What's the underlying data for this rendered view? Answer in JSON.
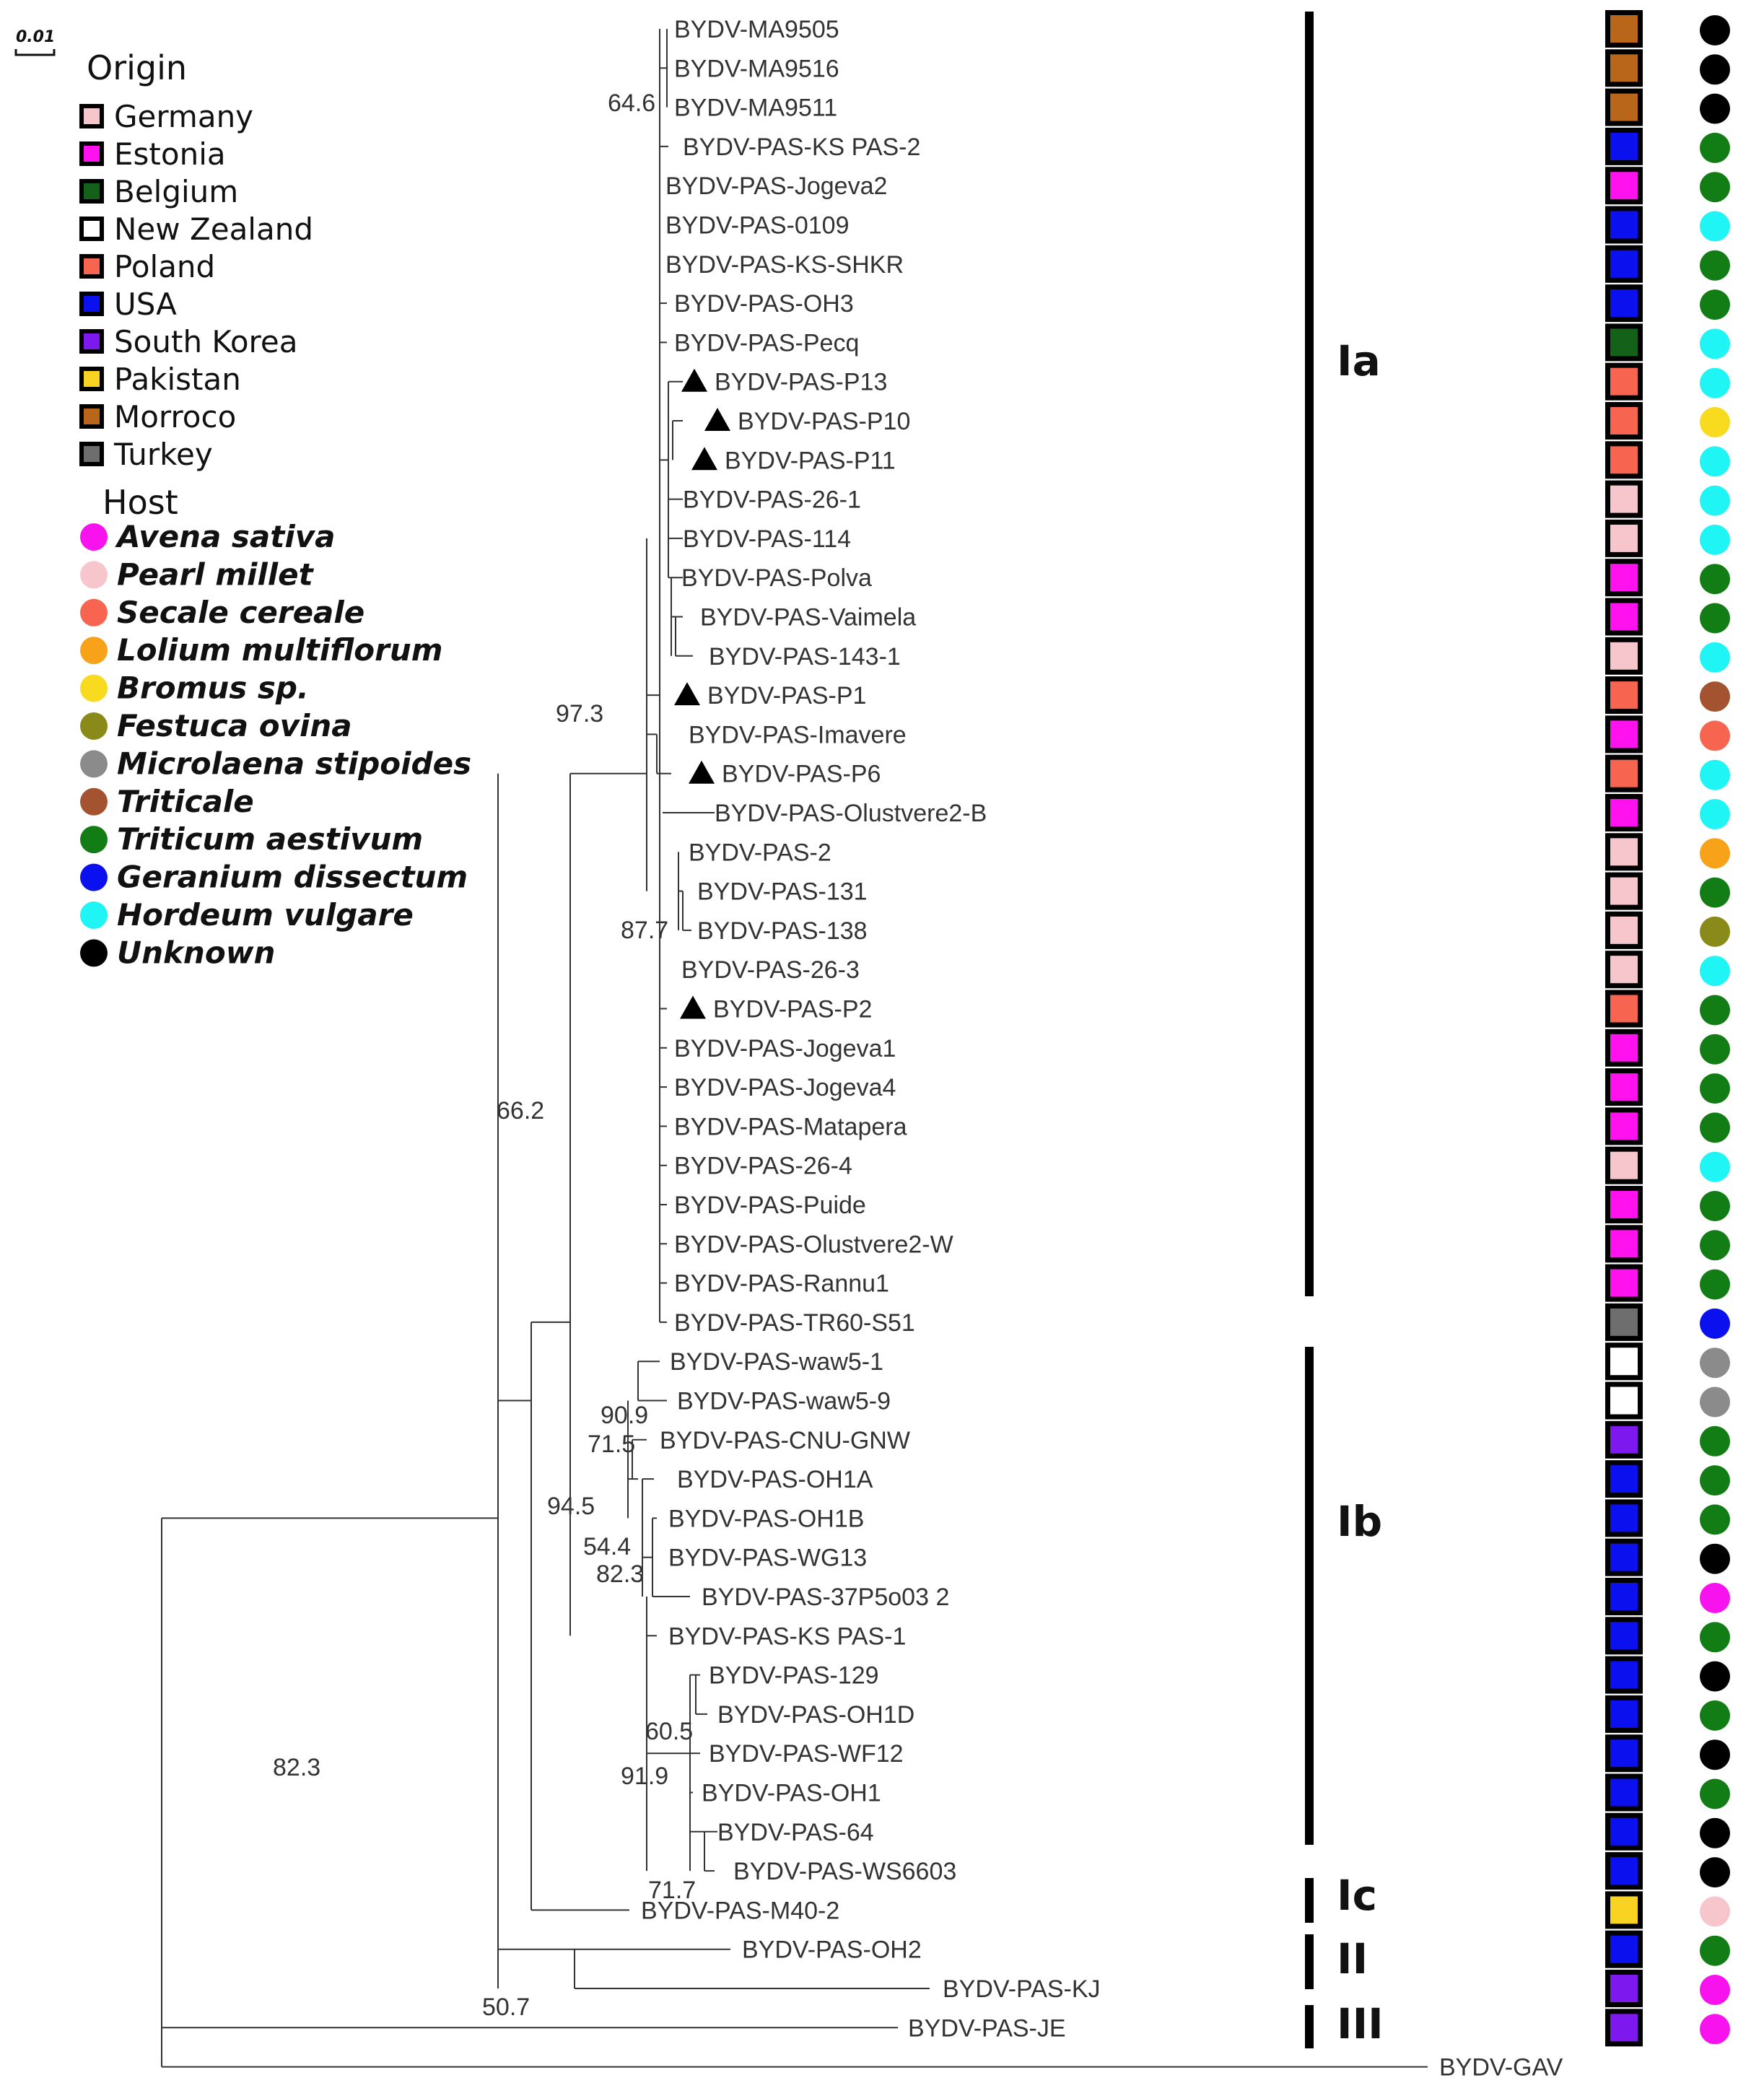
{
  "scale": {
    "label": "0.01"
  },
  "origin_legend": {
    "title": "Origin",
    "items": [
      {
        "label": "Germany",
        "color": "#f6c6cc"
      },
      {
        "label": "Estonia",
        "color": "#ff12ee"
      },
      {
        "label": "Belgium",
        "color": "#14621a"
      },
      {
        "label": "New Zealand",
        "color": "#ffffff"
      },
      {
        "label": "Poland",
        "color": "#f7644f"
      },
      {
        "label": "USA",
        "color": "#0b11ee"
      },
      {
        "label": "South Korea",
        "color": "#7d18ee"
      },
      {
        "label": "Pakistan",
        "color": "#f8d321"
      },
      {
        "label": "Morroco",
        "color": "#b9661b"
      },
      {
        "label": "Turkey",
        "color": "#6e6e6e"
      }
    ]
  },
  "host_legend": {
    "title": "Host",
    "items": [
      {
        "label": "Avena sativa",
        "color": "#f812ee"
      },
      {
        "label": "Pearl millet",
        "color": "#f7c6cc"
      },
      {
        "label": "Secale cereale",
        "color": "#f7644f"
      },
      {
        "label": "Lolium multiflorum",
        "color": "#f8a21a"
      },
      {
        "label": "Bromus sp.",
        "color": "#f8da1e"
      },
      {
        "label": "Festuca ovina",
        "color": "#8a8a1a"
      },
      {
        "label": "Microlaena stipoides",
        "color": "#8b8b8b"
      },
      {
        "label": "Triticale",
        "color": "#a3532f"
      },
      {
        "label": "Triticum aestivum",
        "color": "#137d15"
      },
      {
        "label": "Geranium dissectum",
        "color": "#0b11ee"
      },
      {
        "label": "Hordeum vulgare",
        "color": "#1ff5f5"
      },
      {
        "label": "Unknown",
        "color": "#000000"
      }
    ]
  },
  "taxa": [
    {
      "name": "BYDV-MA9505",
      "origin": "Morroco",
      "host": "Unknown",
      "marker": false
    },
    {
      "name": "BYDV-MA9516",
      "origin": "Morroco",
      "host": "Unknown",
      "marker": false
    },
    {
      "name": "BYDV-MA9511",
      "origin": "Morroco",
      "host": "Unknown",
      "marker": false
    },
    {
      "name": "BYDV-PAS-KS PAS-2",
      "origin": "USA",
      "host": "Triticum aestivum",
      "marker": false
    },
    {
      "name": "BYDV-PAS-Jogeva2",
      "origin": "Estonia",
      "host": "Triticum aestivum",
      "marker": false
    },
    {
      "name": "BYDV-PAS-0109",
      "origin": "USA",
      "host": "Hordeum vulgare",
      "marker": false
    },
    {
      "name": "BYDV-PAS-KS-SHKR",
      "origin": "USA",
      "host": "Triticum aestivum",
      "marker": false
    },
    {
      "name": "BYDV-PAS-OH3",
      "origin": "USA",
      "host": "Triticum aestivum",
      "marker": false
    },
    {
      "name": "BYDV-PAS-Pecq",
      "origin": "Belgium",
      "host": "Hordeum vulgare",
      "marker": false
    },
    {
      "name": "BYDV-PAS-P13",
      "origin": "Poland",
      "host": "Hordeum vulgare",
      "marker": true
    },
    {
      "name": "BYDV-PAS-P10",
      "origin": "Poland",
      "host": "Bromus sp.",
      "marker": true
    },
    {
      "name": "BYDV-PAS-P11",
      "origin": "Poland",
      "host": "Hordeum vulgare",
      "marker": true
    },
    {
      "name": "BYDV-PAS-26-1",
      "origin": "Germany",
      "host": "Hordeum vulgare",
      "marker": false
    },
    {
      "name": "BYDV-PAS-114",
      "origin": "Germany",
      "host": "Hordeum vulgare",
      "marker": false
    },
    {
      "name": "BYDV-PAS-Polva",
      "origin": "Estonia",
      "host": "Triticum aestivum",
      "marker": false
    },
    {
      "name": "BYDV-PAS-Vaimela",
      "origin": "Estonia",
      "host": "Triticum aestivum",
      "marker": false
    },
    {
      "name": "BYDV-PAS-143-1",
      "origin": "Germany",
      "host": "Hordeum vulgare",
      "marker": false
    },
    {
      "name": "BYDV-PAS-P1",
      "origin": "Poland",
      "host": "Triticale",
      "marker": true
    },
    {
      "name": "BYDV-PAS-Imavere",
      "origin": "Estonia",
      "host": "Secale cereale",
      "marker": false
    },
    {
      "name": "BYDV-PAS-P6",
      "origin": "Poland",
      "host": "Hordeum vulgare",
      "marker": true
    },
    {
      "name": "BYDV-PAS-Olustvere2-B",
      "origin": "Estonia",
      "host": "Hordeum vulgare",
      "marker": false
    },
    {
      "name": "BYDV-PAS-2",
      "origin": "Germany",
      "host": "Lolium multiflorum",
      "marker": false
    },
    {
      "name": "BYDV-PAS-131",
      "origin": "Germany",
      "host": "Triticum aestivum",
      "marker": false
    },
    {
      "name": "BYDV-PAS-138",
      "origin": "Germany",
      "host": "Festuca ovina",
      "marker": false
    },
    {
      "name": "BYDV-PAS-26-3",
      "origin": "Germany",
      "host": "Hordeum vulgare",
      "marker": false
    },
    {
      "name": "BYDV-PAS-P2",
      "origin": "Poland",
      "host": "Triticum aestivum",
      "marker": true
    },
    {
      "name": "BYDV-PAS-Jogeva1",
      "origin": "Estonia",
      "host": "Triticum aestivum",
      "marker": false
    },
    {
      "name": "BYDV-PAS-Jogeva4",
      "origin": "Estonia",
      "host": "Triticum aestivum",
      "marker": false
    },
    {
      "name": "BYDV-PAS-Matapera",
      "origin": "Estonia",
      "host": "Triticum aestivum",
      "marker": false
    },
    {
      "name": "BYDV-PAS-26-4",
      "origin": "Germany",
      "host": "Hordeum vulgare",
      "marker": false
    },
    {
      "name": "BYDV-PAS-Puide",
      "origin": "Estonia",
      "host": "Triticum aestivum",
      "marker": false
    },
    {
      "name": "BYDV-PAS-Olustvere2-W",
      "origin": "Estonia",
      "host": "Triticum aestivum",
      "marker": false
    },
    {
      "name": "BYDV-PAS-Rannu1",
      "origin": "Estonia",
      "host": "Triticum aestivum",
      "marker": false
    },
    {
      "name": "BYDV-PAS-TR60-S51",
      "origin": "Turkey",
      "host": "Geranium dissectum",
      "marker": false
    },
    {
      "name": "BYDV-PAS-waw5-1",
      "origin": "New Zealand",
      "host": "Microlaena stipoides",
      "marker": false
    },
    {
      "name": "BYDV-PAS-waw5-9",
      "origin": "New Zealand",
      "host": "Microlaena stipoides",
      "marker": false
    },
    {
      "name": "BYDV-PAS-CNU-GNW",
      "origin": "South Korea",
      "host": "Triticum aestivum",
      "marker": false
    },
    {
      "name": "BYDV-PAS-OH1A",
      "origin": "USA",
      "host": "Triticum aestivum",
      "marker": false
    },
    {
      "name": "BYDV-PAS-OH1B",
      "origin": "USA",
      "host": "Triticum aestivum",
      "marker": false
    },
    {
      "name": "BYDV-PAS-WG13",
      "origin": "USA",
      "host": "Unknown",
      "marker": false
    },
    {
      "name": "BYDV-PAS-37P5o03 2",
      "origin": "USA",
      "host": "Avena sativa",
      "marker": false
    },
    {
      "name": "BYDV-PAS-KS PAS-1",
      "origin": "USA",
      "host": "Triticum aestivum",
      "marker": false
    },
    {
      "name": "BYDV-PAS-129",
      "origin": "USA",
      "host": "Unknown",
      "marker": false
    },
    {
      "name": "BYDV-PAS-OH1D",
      "origin": "USA",
      "host": "Triticum aestivum",
      "marker": false
    },
    {
      "name": "BYDV-PAS-WF12",
      "origin": "USA",
      "host": "Unknown",
      "marker": false
    },
    {
      "name": "BYDV-PAS-OH1",
      "origin": "USA",
      "host": "Triticum aestivum",
      "marker": false
    },
    {
      "name": "BYDV-PAS-64",
      "origin": "USA",
      "host": "Unknown",
      "marker": false
    },
    {
      "name": "BYDV-PAS-WS6603",
      "origin": "USA",
      "host": "Unknown",
      "marker": false
    },
    {
      "name": "BYDV-PAS-M40-2",
      "origin": "Pakistan",
      "host": "Pearl millet",
      "marker": false
    },
    {
      "name": "BYDV-PAS-OH2",
      "origin": "USA",
      "host": "Triticum aestivum",
      "marker": false
    },
    {
      "name": "BYDV-PAS-KJ",
      "origin": "South Korea",
      "host": "Avena sativa",
      "marker": false
    },
    {
      "name": "BYDV-PAS-JE",
      "origin": "South Korea",
      "host": "Avena sativa",
      "marker": false
    },
    {
      "name": "BYDV-GAV",
      "origin": null,
      "host": null,
      "marker": false
    }
  ],
  "support_values": [
    "64.6",
    "97.3",
    "87.7",
    "66.2",
    "90.9",
    "71.5",
    "94.5",
    "54.4",
    "82.3",
    "60.5",
    "91.9",
    "71.7",
    "82.3",
    "50.7"
  ],
  "clades": [
    "Ia",
    "Ib",
    "Ic",
    "II",
    "III"
  ]
}
